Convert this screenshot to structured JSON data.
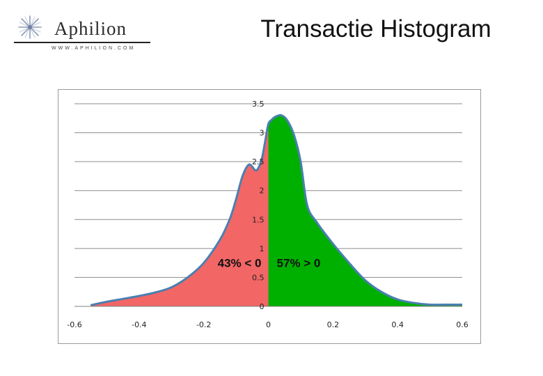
{
  "logo": {
    "brand": "Aphilion",
    "url": "WWW.APHILION.COM",
    "icon": "star-burst-icon"
  },
  "title": "Transactie Histogram",
  "colors": {
    "negative_fill": "#f26666",
    "positive_fill": "#00b000",
    "curve_line": "#4a7fb0",
    "grid": "#8c8c8c"
  },
  "chart_data": {
    "type": "area",
    "title": "",
    "xlabel": "",
    "ylabel": "",
    "xlim": [
      -0.6,
      0.6
    ],
    "ylim": [
      0,
      3.5
    ],
    "x_ticks": [
      "-0.6",
      "-0.4",
      "-0.2",
      "0",
      "0.2",
      "0.4",
      "0.6"
    ],
    "y_ticks": [
      "0",
      "0.5",
      "1",
      "1.5",
      "2",
      "2.5",
      "3",
      "3.5"
    ],
    "grid": "horizontal",
    "x": [
      -0.55,
      -0.5,
      -0.45,
      -0.4,
      -0.35,
      -0.3,
      -0.25,
      -0.2,
      -0.15,
      -0.12,
      -0.1,
      -0.08,
      -0.06,
      -0.04,
      -0.03,
      -0.02,
      -0.01,
      0,
      0.01,
      0.02,
      0.04,
      0.06,
      0.08,
      0.1,
      0.12,
      0.15,
      0.2,
      0.25,
      0.3,
      0.35,
      0.4,
      0.45,
      0.5,
      0.55,
      0.6
    ],
    "y": [
      0.02,
      0.08,
      0.13,
      0.18,
      0.24,
      0.33,
      0.5,
      0.75,
      1.15,
      1.5,
      1.85,
      2.25,
      2.45,
      2.35,
      2.4,
      2.55,
      2.85,
      3.15,
      3.22,
      3.27,
      3.3,
      3.2,
      2.95,
      2.5,
      1.75,
      1.45,
      1.08,
      0.75,
      0.45,
      0.25,
      0.12,
      0.06,
      0.03,
      0.03,
      0.03
    ],
    "split_at": 0,
    "regions": [
      {
        "label": "43% < 0",
        "color": "#f26666"
      },
      {
        "label": "57% > 0",
        "color": "#00b000"
      }
    ]
  }
}
